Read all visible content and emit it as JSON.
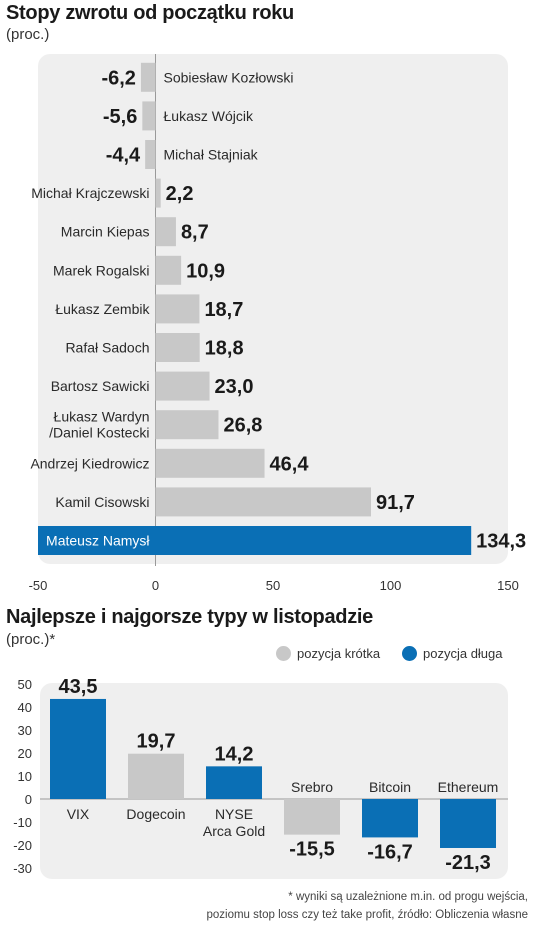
{
  "chart_data": [
    {
      "type": "bar",
      "orientation": "horizontal",
      "title": "Stopy zwrotu od początku roku",
      "subtitle": "(proc.)",
      "categories": [
        "Sobiesław Kozłowski",
        "Łukasz Wójcik",
        "Michał Stajniak",
        "Michał Krajczewski",
        "Marcin Kiepas",
        "Marek Rogalski",
        "Łukasz Zembik",
        "Rafał Sadoch",
        "Bartosz Sawicki",
        "Łukasz Wardyn\n/Daniel Kostecki",
        "Andrzej Kiedrowicz",
        "Kamil Cisowski",
        "Mateusz Namysł"
      ],
      "values": [
        -6.2,
        -5.6,
        -4.4,
        2.2,
        8.7,
        10.9,
        18.7,
        18.8,
        23.0,
        26.8,
        46.4,
        91.7,
        134.3
      ],
      "value_labels": [
        "-6,2",
        "-5,6",
        "-4,4",
        "2,2",
        "8,7",
        "10,9",
        "18,7",
        "18,8",
        "23,0",
        "26,8",
        "46,4",
        "91,7",
        "134,3"
      ],
      "highlight_index": 12,
      "xlim": [
        -50,
        150
      ],
      "xticks": [
        -50,
        0,
        50,
        100,
        150
      ],
      "colors": {
        "default": "#c8c8c8",
        "highlight": "#0a6fb5"
      }
    },
    {
      "type": "bar",
      "title": "Najlepsze i najgorsze typy w listopadzie",
      "subtitle": "(proc.)*",
      "categories": [
        "VIX",
        "Dogecoin",
        "NYSE\nArca Gold",
        "Srebro",
        "Bitcoin",
        "Ethereum"
      ],
      "values": [
        43.5,
        19.7,
        14.2,
        -15.5,
        -16.7,
        -21.3
      ],
      "value_labels": [
        "43,5",
        "19,7",
        "14,2",
        "-15,5",
        "-16,7",
        "-21,3"
      ],
      "series_type": [
        "dluga",
        "krotka",
        "dluga",
        "krotka",
        "dluga",
        "dluga"
      ],
      "ylim": [
        -30,
        50
      ],
      "yticks": [
        50,
        40,
        30,
        20,
        10,
        0,
        -10,
        -20,
        -30
      ],
      "legend": [
        {
          "key": "krotka",
          "label": "pozycja krótka",
          "color": "#c8c8c8"
        },
        {
          "key": "dluga",
          "label": "pozycja długa",
          "color": "#0a6fb5"
        }
      ],
      "legend_position": "top-right"
    }
  ],
  "footnote_line1": "* wyniki są uzależnione m.in. od progu wejścia,",
  "footnote_line2": "poziomu stop loss czy też take profit, źródło: Obliczenia własne"
}
